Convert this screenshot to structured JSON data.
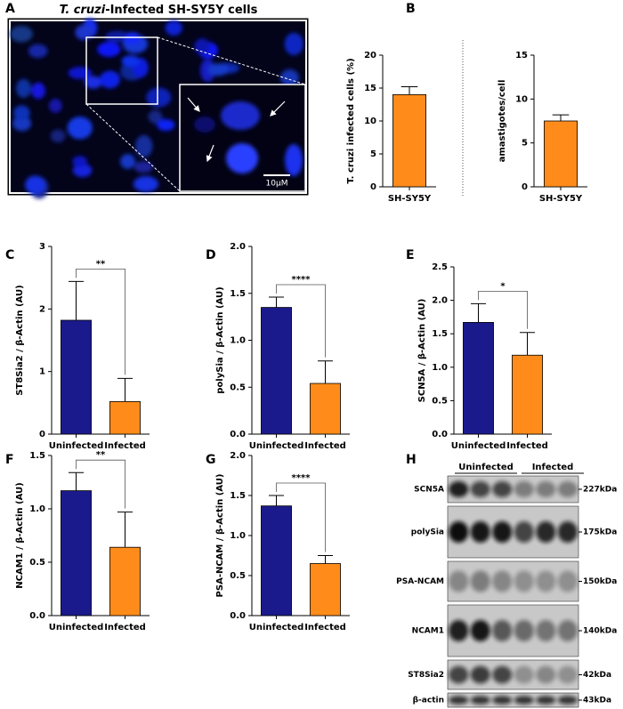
{
  "image_panel": {
    "panel": "A",
    "title_italic": "T. cruzi",
    "title_rest": "-Infected SH-SY5Y cells",
    "scale_bar": "10μM"
  },
  "chart_data": [
    {
      "panel": "B",
      "type": "bar",
      "ylabel": "T. cruzi infected cells (%)",
      "categories": [
        "SH-SY5Y"
      ],
      "values": [
        14
      ],
      "errors": [
        1.2
      ],
      "colors": [
        "#ff8c1a"
      ],
      "ylim": [
        0,
        20
      ],
      "yticks": [
        0,
        5,
        10,
        15,
        20
      ]
    },
    {
      "type": "bar",
      "ylabel": "amastigotes/cell",
      "categories": [
        "SH-SY5Y"
      ],
      "values": [
        7.5
      ],
      "errors": [
        0.7
      ],
      "colors": [
        "#ff8c1a"
      ],
      "ylim": [
        0,
        15
      ],
      "yticks": [
        0,
        5,
        10,
        15
      ]
    },
    {
      "panel": "C",
      "type": "bar",
      "ylabel": "ST8Sia2 / β-Actin (AU)",
      "categories": [
        "Uninfected",
        "Infected"
      ],
      "values": [
        1.82,
        0.52
      ],
      "errors": [
        0.62,
        0.37
      ],
      "colors": [
        "#1a1a8c",
        "#ff8c1a"
      ],
      "ylim": [
        0,
        3
      ],
      "yticks": [
        0,
        1,
        2,
        3
      ],
      "annotation": "**"
    },
    {
      "panel": "D",
      "type": "bar",
      "ylabel": "polySia / β-Actin (AU)",
      "categories": [
        "Uninfected",
        "Infected"
      ],
      "values": [
        1.35,
        0.54
      ],
      "errors": [
        0.11,
        0.24
      ],
      "colors": [
        "#1a1a8c",
        "#ff8c1a"
      ],
      "ylim": [
        0,
        2
      ],
      "yticks": [
        {
          "value": 0,
          "label": "0.0"
        },
        {
          "value": 0.5,
          "label": "0.5"
        },
        {
          "value": 1,
          "label": "1.0"
        },
        {
          "value": 1.5,
          "label": "1.5"
        },
        {
          "value": 2,
          "label": "2.0"
        }
      ],
      "annotation": "****"
    },
    {
      "panel": "E",
      "type": "bar",
      "ylabel": "SCN5A / β-Actin (AU)",
      "categories": [
        "Uninfected",
        "Infected"
      ],
      "values": [
        1.67,
        1.18
      ],
      "errors": [
        0.28,
        0.34
      ],
      "colors": [
        "#1a1a8c",
        "#ff8c1a"
      ],
      "ylim": [
        0,
        2.5
      ],
      "yticks": [
        {
          "value": 0,
          "label": "0.0"
        },
        {
          "value": 0.5,
          "label": "0.5"
        },
        {
          "value": 1,
          "label": "1.0"
        },
        {
          "value": 1.5,
          "label": "1.5"
        },
        {
          "value": 2,
          "label": "2.0"
        },
        {
          "value": 2.5,
          "label": "2.5"
        }
      ],
      "annotation": "*"
    },
    {
      "panel": "F",
      "type": "bar",
      "ylabel": "NCAM1 / β-Actin (AU)",
      "categories": [
        "Uninfected",
        "Infected"
      ],
      "values": [
        1.17,
        0.64
      ],
      "errors": [
        0.17,
        0.33
      ],
      "colors": [
        "#1a1a8c",
        "#ff8c1a"
      ],
      "ylim": [
        0,
        1.5
      ],
      "yticks": [
        {
          "value": 0,
          "label": "0.0"
        },
        {
          "value": 0.5,
          "label": "0.5"
        },
        {
          "value": 1,
          "label": "1.0"
        },
        {
          "value": 1.5,
          "label": "1.5"
        }
      ],
      "annotation": "**"
    },
    {
      "panel": "G",
      "type": "bar",
      "ylabel": "PSA-NCAM / β-Actin (AU)",
      "categories": [
        "Uninfected",
        "Infected"
      ],
      "values": [
        1.37,
        0.65
      ],
      "errors": [
        0.13,
        0.1
      ],
      "colors": [
        "#1a1a8c",
        "#ff8c1a"
      ],
      "ylim": [
        0,
        2
      ],
      "yticks": [
        {
          "value": 0,
          "label": "0.0"
        },
        {
          "value": 0.5,
          "label": "0.5"
        },
        {
          "value": 1,
          "label": "1.0"
        },
        {
          "value": 1.5,
          "label": "1.5"
        },
        {
          "value": 2,
          "label": "2.0"
        }
      ],
      "annotation": "****"
    }
  ],
  "blot": {
    "panel": "H",
    "groups": [
      "Uninfected",
      "Infected"
    ],
    "rows": [
      {
        "label": "SCN5A",
        "size": "227kDa"
      },
      {
        "label": "polySia",
        "size": "175kDa"
      },
      {
        "label": "PSA-NCAM",
        "size": "150kDa"
      },
      {
        "label": "NCAM1",
        "size": "140kDa"
      },
      {
        "label": "ST8Sia2",
        "size": "42kDa"
      },
      {
        "label": "β-actin",
        "size": "43kDa"
      }
    ]
  }
}
